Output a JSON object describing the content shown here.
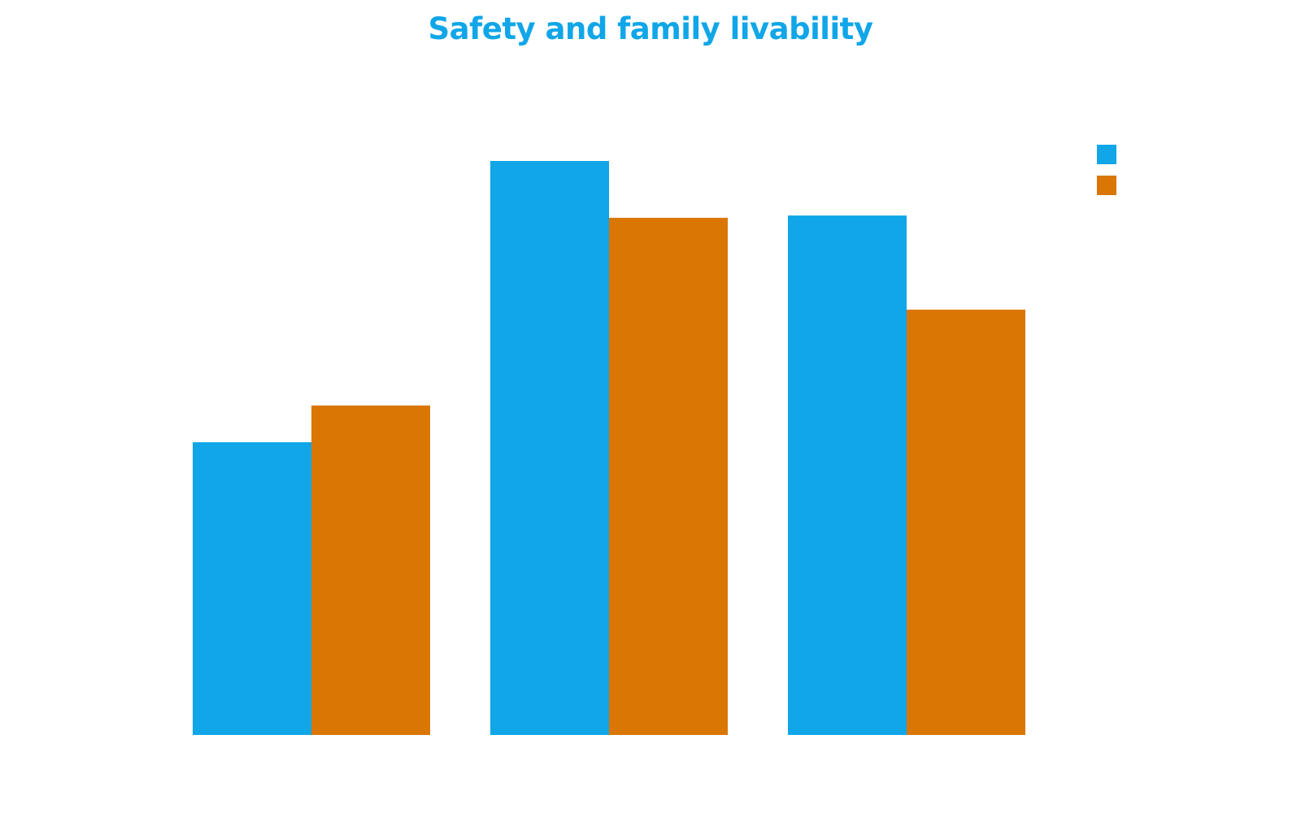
{
  "chart_data": {
    "type": "bar",
    "title": "Safety and family livability",
    "xlabel": "",
    "ylabel": "",
    "categories": [
      "",
      "",
      ""
    ],
    "series": [
      {
        "color": "#10a6e8",
        "values": [
          51,
          100,
          90.5
        ]
      },
      {
        "color": "#d97604",
        "values": [
          57.4,
          90.1,
          74.1
        ]
      }
    ],
    "ylim": [
      0,
      100
    ],
    "grid": false,
    "legend": "top-right",
    "colors": {
      "title": "#10a6e8"
    }
  }
}
